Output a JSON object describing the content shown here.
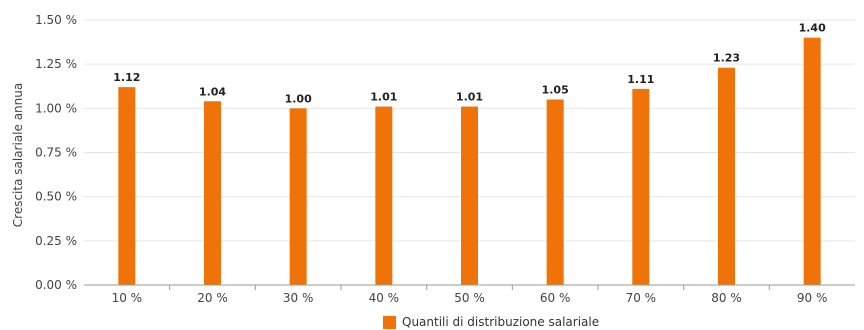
{
  "chart_data": {
    "type": "bar",
    "categories": [
      "10 %",
      "20 %",
      "30 %",
      "40 %",
      "50 %",
      "60 %",
      "70 %",
      "80 %",
      "90 %"
    ],
    "series": [
      {
        "name": "Quantili di distribuzione salariale",
        "values": [
          1.12,
          1.04,
          1.0,
          1.01,
          1.01,
          1.05,
          1.11,
          1.23,
          1.4
        ],
        "data_labels": [
          "1.12",
          "1.04",
          "1.00",
          "1.01",
          "1.01",
          "1.05",
          "1.11",
          "1.23",
          "1.40"
        ],
        "color": "#EF7309"
      }
    ],
    "ylabel": "Crescita salariale annua",
    "xlabel": "",
    "ylim": [
      0,
      1.5
    ],
    "yticks": [
      0,
      0.25,
      0.5,
      0.75,
      1.0,
      1.25,
      1.5
    ],
    "ytick_labels": [
      "0.00 %",
      "0.25 %",
      "0.50 %",
      "0.75 %",
      "1.00 %",
      "1.25 %",
      "1.50 %"
    ],
    "grid": true,
    "legend_position": "bottom-center"
  }
}
